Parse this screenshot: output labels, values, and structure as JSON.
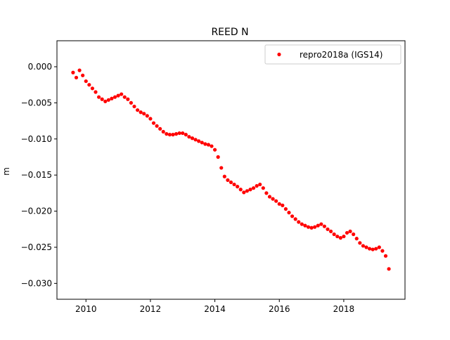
{
  "chart_data": {
    "type": "scatter",
    "title": "REED N",
    "xlabel": "",
    "ylabel": "m",
    "xlim": [
      2009.1,
      2019.9
    ],
    "ylim": [
      -0.0322,
      0.0036
    ],
    "x_ticks": [
      2010,
      2012,
      2014,
      2016,
      2018
    ],
    "x_tick_labels": [
      "2010",
      "2012",
      "2014",
      "2016",
      "2018"
    ],
    "y_ticks": [
      0.0,
      -0.005,
      -0.01,
      -0.015,
      -0.02,
      -0.025,
      -0.03
    ],
    "y_tick_labels": [
      "0.000",
      "−0.005",
      "−0.010",
      "−0.015",
      "−0.020",
      "−0.025",
      "−0.030"
    ],
    "grid": false,
    "legend": "top-right",
    "series": [
      {
        "name": "repro2018a (IGS14)",
        "color": "#ff0000",
        "marker": "circle",
        "points": [
          [
            2009.6,
            -0.0008
          ],
          [
            2009.7,
            -0.0015
          ],
          [
            2009.8,
            -0.0005
          ],
          [
            2009.9,
            -0.0012
          ],
          [
            2010.0,
            -0.002
          ],
          [
            2010.1,
            -0.0025
          ],
          [
            2010.2,
            -0.003
          ],
          [
            2010.3,
            -0.0035
          ],
          [
            2010.4,
            -0.0042
          ],
          [
            2010.5,
            -0.0045
          ],
          [
            2010.6,
            -0.0048
          ],
          [
            2010.7,
            -0.0046
          ],
          [
            2010.8,
            -0.0044
          ],
          [
            2010.9,
            -0.0042
          ],
          [
            2011.0,
            -0.004
          ],
          [
            2011.1,
            -0.0038
          ],
          [
            2011.2,
            -0.0042
          ],
          [
            2011.3,
            -0.0045
          ],
          [
            2011.4,
            -0.005
          ],
          [
            2011.5,
            -0.0055
          ],
          [
            2011.6,
            -0.006
          ],
          [
            2011.7,
            -0.0063
          ],
          [
            2011.8,
            -0.0065
          ],
          [
            2011.9,
            -0.0068
          ],
          [
            2012.0,
            -0.0072
          ],
          [
            2012.1,
            -0.0078
          ],
          [
            2012.2,
            -0.0082
          ],
          [
            2012.3,
            -0.0086
          ],
          [
            2012.4,
            -0.009
          ],
          [
            2012.5,
            -0.0093
          ],
          [
            2012.6,
            -0.0094
          ],
          [
            2012.7,
            -0.0094
          ],
          [
            2012.8,
            -0.0093
          ],
          [
            2012.9,
            -0.0092
          ],
          [
            2013.0,
            -0.0092
          ],
          [
            2013.1,
            -0.0094
          ],
          [
            2013.2,
            -0.0097
          ],
          [
            2013.3,
            -0.0099
          ],
          [
            2013.4,
            -0.0101
          ],
          [
            2013.5,
            -0.0103
          ],
          [
            2013.6,
            -0.0105
          ],
          [
            2013.7,
            -0.0107
          ],
          [
            2013.8,
            -0.0108
          ],
          [
            2013.9,
            -0.011
          ],
          [
            2014.0,
            -0.0115
          ],
          [
            2014.1,
            -0.0125
          ],
          [
            2014.2,
            -0.014
          ],
          [
            2014.3,
            -0.0152
          ],
          [
            2014.4,
            -0.0157
          ],
          [
            2014.5,
            -0.016
          ],
          [
            2014.6,
            -0.0163
          ],
          [
            2014.7,
            -0.0166
          ],
          [
            2014.8,
            -0.017
          ],
          [
            2014.9,
            -0.0174
          ],
          [
            2015.0,
            -0.0172
          ],
          [
            2015.1,
            -0.017
          ],
          [
            2015.2,
            -0.0168
          ],
          [
            2015.3,
            -0.0165
          ],
          [
            2015.4,
            -0.0163
          ],
          [
            2015.5,
            -0.0168
          ],
          [
            2015.6,
            -0.0175
          ],
          [
            2015.7,
            -0.018
          ],
          [
            2015.8,
            -0.0183
          ],
          [
            2015.9,
            -0.0186
          ],
          [
            2016.0,
            -0.019
          ],
          [
            2016.1,
            -0.0192
          ],
          [
            2016.2,
            -0.0197
          ],
          [
            2016.3,
            -0.0202
          ],
          [
            2016.4,
            -0.0207
          ],
          [
            2016.5,
            -0.0211
          ],
          [
            2016.6,
            -0.0215
          ],
          [
            2016.7,
            -0.0218
          ],
          [
            2016.8,
            -0.022
          ],
          [
            2016.9,
            -0.0222
          ],
          [
            2017.0,
            -0.0223
          ],
          [
            2017.1,
            -0.0222
          ],
          [
            2017.2,
            -0.022
          ],
          [
            2017.3,
            -0.0218
          ],
          [
            2017.4,
            -0.0221
          ],
          [
            2017.5,
            -0.0225
          ],
          [
            2017.6,
            -0.0228
          ],
          [
            2017.7,
            -0.0232
          ],
          [
            2017.8,
            -0.0235
          ],
          [
            2017.9,
            -0.0237
          ],
          [
            2018.0,
            -0.0235
          ],
          [
            2018.1,
            -0.023
          ],
          [
            2018.2,
            -0.0228
          ],
          [
            2018.3,
            -0.0232
          ],
          [
            2018.4,
            -0.0238
          ],
          [
            2018.5,
            -0.0244
          ],
          [
            2018.6,
            -0.0248
          ],
          [
            2018.7,
            -0.025
          ],
          [
            2018.8,
            -0.0252
          ],
          [
            2018.9,
            -0.0253
          ],
          [
            2019.0,
            -0.0252
          ],
          [
            2019.1,
            -0.025
          ],
          [
            2019.2,
            -0.0255
          ],
          [
            2019.3,
            -0.0262
          ],
          [
            2019.4,
            -0.028
          ]
        ]
      }
    ]
  }
}
